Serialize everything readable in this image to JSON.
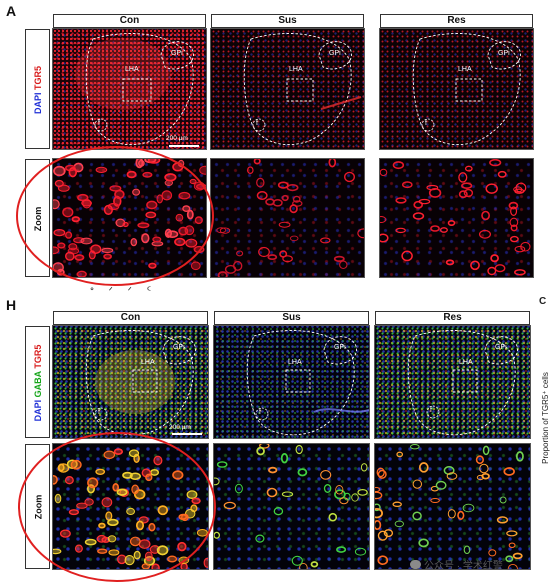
{
  "panel_A": {
    "letter": "A",
    "columns": [
      "Con",
      "Sus",
      "Res"
    ],
    "side_label": {
      "dapi": "DAPI",
      "marker": "TGR5"
    },
    "zoom_label": "Zoom",
    "regions": {
      "gpi": "GPi",
      "lha": "LHA",
      "fx": "f"
    },
    "scale_bar": "200 μm"
  },
  "panel_H": {
    "letter": "H",
    "columns": [
      "Con",
      "Sus",
      "Res"
    ],
    "side_label": {
      "dapi": "DAPI",
      "gaba": "GABA",
      "marker": "TGR5"
    },
    "zoom_label": "Zoom",
    "regions": {
      "gpi": "GPi",
      "lha": "LHA",
      "fx": "f"
    },
    "scale_bar": "200 μm"
  },
  "cut_off_text": {
    "right_top": "C",
    "right_vertical": "Proportion of TGR5⁺ cells",
    "stray_marks": "ᐤ ᐟ ᐟ ᑦ"
  },
  "watermark": "公众号 · 学术红警",
  "colors": {
    "dapi": "#1f2fd6",
    "tgr5": "#d81b1b",
    "gaba": "#16a51a",
    "highlight": "#e02020"
  }
}
